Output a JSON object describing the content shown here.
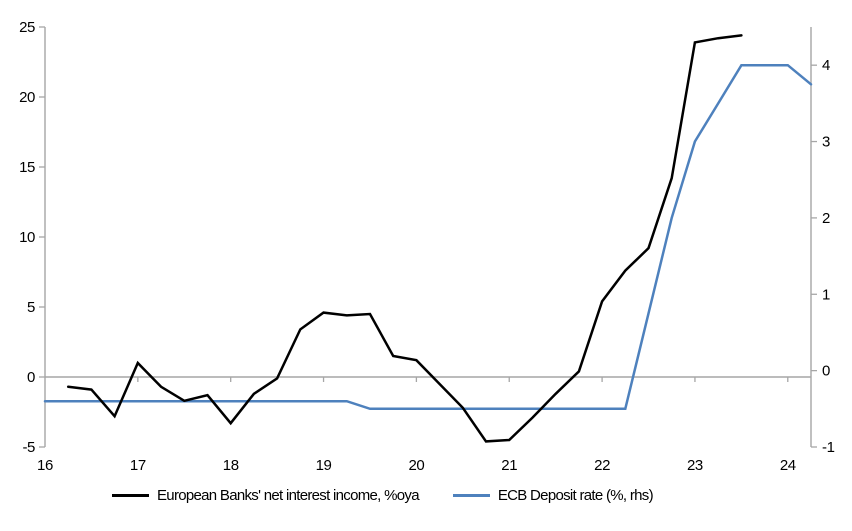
{
  "chart_data": {
    "type": "line",
    "title": "",
    "x_axis": {
      "min": 16,
      "max": 24.25,
      "ticks": [
        16,
        17,
        18,
        19,
        20,
        21,
        22,
        23,
        24
      ]
    },
    "y_left": {
      "min": -5,
      "max": 25,
      "ticks": [
        -5,
        0,
        5,
        10,
        15,
        20,
        25
      ]
    },
    "y_right": {
      "min": -1,
      "max": 4.5,
      "ticks": [
        -1,
        0,
        1,
        2,
        3,
        4
      ]
    },
    "grid": "zero-line-only",
    "legend_position": "bottom",
    "colors": {
      "axis": "#A6A6A6",
      "series_nii": "#000000",
      "series_ecb": "#4E81BD"
    },
    "series": [
      {
        "name": "European Banks' net interest income, %oya",
        "axis": "left",
        "color": "#000000",
        "x": [
          16.25,
          16.5,
          16.75,
          17.0,
          17.25,
          17.5,
          17.75,
          18.0,
          18.25,
          18.5,
          18.75,
          19.0,
          19.25,
          19.5,
          19.75,
          20.0,
          20.25,
          20.5,
          20.75,
          21.0,
          21.25,
          21.5,
          21.75,
          22.0,
          22.25,
          22.5,
          22.75,
          23.0,
          23.25,
          23.5
        ],
        "y": [
          -0.7,
          -0.9,
          -2.8,
          1.0,
          -0.7,
          -1.7,
          -1.3,
          -3.3,
          -1.2,
          -0.1,
          3.4,
          4.6,
          4.4,
          4.5,
          1.5,
          1.2,
          -0.5,
          -2.2,
          -4.6,
          -4.5,
          -2.9,
          -1.2,
          0.4,
          5.4,
          7.6,
          9.2,
          14.2,
          23.9,
          24.2,
          24.4
        ]
      },
      {
        "name": "ECB Deposit rate (%, rhs)",
        "axis": "right",
        "color": "#4E81BD",
        "x": [
          16.0,
          16.25,
          16.5,
          16.75,
          17.0,
          17.25,
          17.5,
          17.75,
          18.0,
          18.25,
          18.5,
          18.75,
          19.0,
          19.25,
          19.5,
          19.75,
          20.0,
          20.25,
          20.5,
          20.75,
          21.0,
          21.25,
          21.5,
          21.75,
          22.0,
          22.25,
          22.5,
          22.75,
          23.0,
          23.25,
          23.5,
          23.75,
          24.0,
          24.25
        ],
        "y": [
          -0.4,
          -0.4,
          -0.4,
          -0.4,
          -0.4,
          -0.4,
          -0.4,
          -0.4,
          -0.4,
          -0.4,
          -0.4,
          -0.4,
          -0.4,
          -0.4,
          -0.5,
          -0.5,
          -0.5,
          -0.5,
          -0.5,
          -0.5,
          -0.5,
          -0.5,
          -0.5,
          -0.5,
          -0.5,
          -0.5,
          0.75,
          2.0,
          3.0,
          3.5,
          4.0,
          4.0,
          4.0,
          3.75
        ]
      }
    ]
  }
}
